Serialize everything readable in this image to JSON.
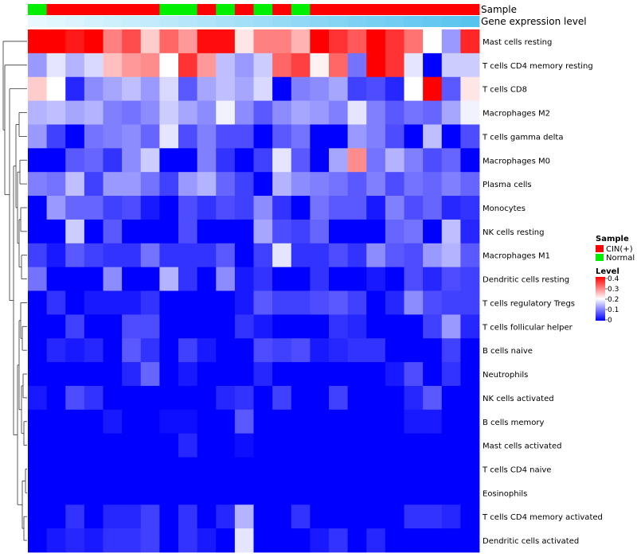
{
  "chart_data": {
    "type": "heatmap",
    "title": "",
    "annotation_tracks": [
      "Sample",
      "Gene expression level"
    ],
    "sample_groups": [
      "Normal",
      "CIN(+)",
      "CIN(+)",
      "CIN(+)",
      "CIN(+)",
      "CIN(+)",
      "CIN(+)",
      "Normal",
      "Normal",
      "CIN(+)",
      "Normal",
      "CIN(+)",
      "Normal",
      "CIN(+)",
      "Normal",
      "CIN(+)",
      "CIN(+)",
      "CIN(+)",
      "CIN(+)",
      "CIN(+)",
      "CIN(+)",
      "CIN(+)",
      "CIN(+)",
      "CIN(+)"
    ],
    "sample_colors": {
      "CIN(+)": "#ff0000",
      "Normal": "#00ee00"
    },
    "expression_level": [
      0.02,
      0.06,
      0.1,
      0.14,
      0.18,
      0.22,
      0.26,
      0.3,
      0.34,
      0.38,
      0.42,
      0.46,
      0.5,
      0.54,
      0.58,
      0.62,
      0.66,
      0.7,
      0.74,
      0.78,
      0.82,
      0.86,
      0.9,
      0.95
    ],
    "expression_colors": {
      "low": "#eafaff",
      "high": "#4fc0ee"
    },
    "rows": [
      "Mast cells resting",
      "T cells CD4 memory resting",
      "T cells CD8",
      "Macrophages M2",
      "T cells gamma delta",
      "Macrophages M0",
      "Plasma cells",
      "Monocytes",
      "NK cells resting",
      "Macrophages M1",
      "Dendritic cells resting",
      "T cells regulatory  Tregs",
      "T cells follicular helper",
      "B cells naive",
      "Neutrophils",
      "NK cells activated",
      "B cells memory",
      "Mast cells activated",
      "T cells CD4 naive",
      "Eosinophils",
      "T cells CD4 memory activated",
      "Dendritic cells activated"
    ],
    "values": [
      [
        0.4,
        0.4,
        0.38,
        0.4,
        0.3,
        0.34,
        0.24,
        0.32,
        0.28,
        0.39,
        0.39,
        0.22,
        0.3,
        0.3,
        0.26,
        0.4,
        0.36,
        0.33,
        0.4,
        0.36,
        0.31,
        0.2,
        0.12,
        0.37
      ],
      [
        0.12,
        0.18,
        0.14,
        0.17,
        0.25,
        0.28,
        0.29,
        0.2,
        0.36,
        0.28,
        0.15,
        0.12,
        0.16,
        0.32,
        0.35,
        0.21,
        0.32,
        0.09,
        0.4,
        0.36,
        0.18,
        0.0,
        0.16,
        0.16
      ],
      [
        0.24,
        0.2,
        0.03,
        0.11,
        0.13,
        0.15,
        0.12,
        0.17,
        0.07,
        0.13,
        0.15,
        0.13,
        0.17,
        0.0,
        0.1,
        0.11,
        0.13,
        0.05,
        0.06,
        0.03,
        0.2,
        0.4,
        0.07,
        0.22
      ],
      [
        0.14,
        0.15,
        0.13,
        0.14,
        0.1,
        0.09,
        0.11,
        0.16,
        0.13,
        0.11,
        0.19,
        0.11,
        0.07,
        0.11,
        0.13,
        0.12,
        0.1,
        0.18,
        0.1,
        0.07,
        0.09,
        0.08,
        0.13,
        0.19
      ],
      [
        0.12,
        0.05,
        0.0,
        0.09,
        0.1,
        0.11,
        0.08,
        0.18,
        0.06,
        0.1,
        0.06,
        0.06,
        0.0,
        0.07,
        0.09,
        0.0,
        0.0,
        0.12,
        0.1,
        0.06,
        0.0,
        0.15,
        0.0,
        0.06
      ],
      [
        0.0,
        0.0,
        0.07,
        0.08,
        0.04,
        0.11,
        0.16,
        0.0,
        0.0,
        0.1,
        0.04,
        0.0,
        0.05,
        0.18,
        0.07,
        0.0,
        0.13,
        0.29,
        0.09,
        0.14,
        0.1,
        0.06,
        0.08,
        0.0
      ],
      [
        0.1,
        0.09,
        0.15,
        0.05,
        0.12,
        0.12,
        0.09,
        0.05,
        0.12,
        0.14,
        0.08,
        0.05,
        0.0,
        0.14,
        0.11,
        0.1,
        0.09,
        0.07,
        0.1,
        0.06,
        0.09,
        0.08,
        0.1,
        0.08
      ],
      [
        0.0,
        0.12,
        0.08,
        0.08,
        0.05,
        0.06,
        0.02,
        0.0,
        0.06,
        0.04,
        0.06,
        0.05,
        0.11,
        0.04,
        0.0,
        0.09,
        0.07,
        0.07,
        0.02,
        0.1,
        0.06,
        0.08,
        0.03,
        0.04
      ],
      [
        0.0,
        0.0,
        0.16,
        0.0,
        0.07,
        0.0,
        0.0,
        0.0,
        0.06,
        0.0,
        0.0,
        0.0,
        0.13,
        0.06,
        0.05,
        0.08,
        0.0,
        0.0,
        0.0,
        0.08,
        0.09,
        0.0,
        0.15,
        0.03
      ],
      [
        0.05,
        0.02,
        0.07,
        0.05,
        0.04,
        0.04,
        0.09,
        0.04,
        0.04,
        0.04,
        0.07,
        0.0,
        0.05,
        0.18,
        0.04,
        0.04,
        0.06,
        0.04,
        0.11,
        0.07,
        0.06,
        0.12,
        0.14,
        0.07
      ],
      [
        0.09,
        0.0,
        0.0,
        0.0,
        0.11,
        0.0,
        0.0,
        0.14,
        0.04,
        0.0,
        0.11,
        0.02,
        0.04,
        0.0,
        0.0,
        0.04,
        0.0,
        0.0,
        0.02,
        0.0,
        0.06,
        0.03,
        0.06,
        0.05
      ],
      [
        0.0,
        0.04,
        0.0,
        0.02,
        0.02,
        0.02,
        0.04,
        0.0,
        0.0,
        0.0,
        0.0,
        0.02,
        0.07,
        0.05,
        0.05,
        0.06,
        0.07,
        0.05,
        0.0,
        0.03,
        0.11,
        0.06,
        0.05,
        0.05
      ],
      [
        0.0,
        0.0,
        0.05,
        0.0,
        0.0,
        0.06,
        0.06,
        0.0,
        0.0,
        0.0,
        0.0,
        0.04,
        0.02,
        0.0,
        0.0,
        0.0,
        0.04,
        0.03,
        0.0,
        0.0,
        0.0,
        0.05,
        0.12,
        0.03
      ],
      [
        0.0,
        0.03,
        0.02,
        0.03,
        0.0,
        0.07,
        0.04,
        0.0,
        0.05,
        0.02,
        0.0,
        0.0,
        0.06,
        0.05,
        0.06,
        0.02,
        0.03,
        0.04,
        0.04,
        0.0,
        0.0,
        0.0,
        0.05,
        0.0
      ],
      [
        0.0,
        0.0,
        0.0,
        0.0,
        0.0,
        0.03,
        0.08,
        0.0,
        0.02,
        0.0,
        0.0,
        0.0,
        0.03,
        0.0,
        0.0,
        0.0,
        0.0,
        0.0,
        0.0,
        0.02,
        0.06,
        0.0,
        0.04,
        0.0
      ],
      [
        0.02,
        0.0,
        0.06,
        0.04,
        0.0,
        0.0,
        0.0,
        0.0,
        0.0,
        0.0,
        0.03,
        0.04,
        0.0,
        0.05,
        0.0,
        0.0,
        0.05,
        0.0,
        0.0,
        0.0,
        0.03,
        0.07,
        0.0,
        0.0
      ],
      [
        0.0,
        0.0,
        0.0,
        0.0,
        0.02,
        0.0,
        0.0,
        0.01,
        0.01,
        0.0,
        0.0,
        0.07,
        0.0,
        0.0,
        0.0,
        0.0,
        0.0,
        0.0,
        0.0,
        0.0,
        0.02,
        0.02,
        0.0,
        0.0
      ],
      [
        0.0,
        0.0,
        0.0,
        0.0,
        0.0,
        0.0,
        0.0,
        0.0,
        0.03,
        0.0,
        0.0,
        0.01,
        0.0,
        0.0,
        0.0,
        0.0,
        0.0,
        0.0,
        0.0,
        0.0,
        0.0,
        0.0,
        0.0,
        0.0
      ],
      [
        0.0,
        0.0,
        0.0,
        0.0,
        0.0,
        0.0,
        0.0,
        0.0,
        0.0,
        0.0,
        0.0,
        0.0,
        0.0,
        0.0,
        0.0,
        0.0,
        0.0,
        0.0,
        0.0,
        0.0,
        0.0,
        0.0,
        0.0,
        0.0
      ],
      [
        0.0,
        0.0,
        0.0,
        0.0,
        0.0,
        0.0,
        0.0,
        0.0,
        0.0,
        0.0,
        0.0,
        0.0,
        0.0,
        0.0,
        0.0,
        0.0,
        0.0,
        0.0,
        0.0,
        0.0,
        0.0,
        0.0,
        0.0,
        0.0
      ],
      [
        0.0,
        0.0,
        0.04,
        0.0,
        0.03,
        0.03,
        0.05,
        0.0,
        0.04,
        0.0,
        0.03,
        0.14,
        0.0,
        0.0,
        0.04,
        0.0,
        0.0,
        0.0,
        0.0,
        0.0,
        0.04,
        0.04,
        0.03,
        0.0
      ],
      [
        0.0,
        0.02,
        0.03,
        0.02,
        0.04,
        0.04,
        0.05,
        0.0,
        0.04,
        0.02,
        0.0,
        0.18,
        0.0,
        0.0,
        0.0,
        0.02,
        0.04,
        0.0,
        0.03,
        0.0,
        0.0,
        0.0,
        0.0,
        0.0
      ]
    ],
    "color_scale": {
      "min": 0,
      "max": 0.4,
      "low": "#0000ff",
      "mid": "#ffffff",
      "high": "#ff0000"
    },
    "legends": [
      {
        "title": "Sample",
        "entries": [
          {
            "label": "CIN(+)",
            "color": "#ff0000"
          },
          {
            "label": "Normal",
            "color": "#00ee00"
          }
        ]
      },
      {
        "title": "Level",
        "ticks": [
          "0.4",
          "0.3",
          "0.2",
          "0.1",
          "0"
        ]
      }
    ],
    "row_dendrogram": true
  }
}
